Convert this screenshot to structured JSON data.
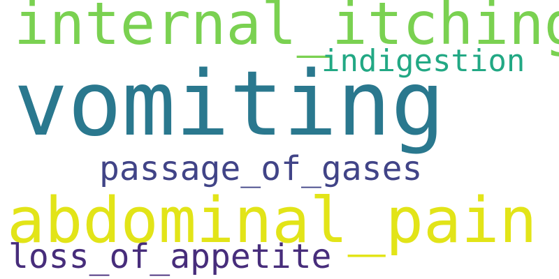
{
  "words": [
    {
      "text": "internal_itching",
      "color": "#7ad151"
    },
    {
      "text": "indigestion",
      "color": "#22a884"
    },
    {
      "text": "vomiting",
      "color": "#2a788e"
    },
    {
      "text": "passage_of_gases",
      "color": "#414487"
    },
    {
      "text": "abdominal_pain",
      "color": "#e2e418"
    },
    {
      "text": "loss_of_appetite",
      "color": "#472d7b"
    }
  ]
}
